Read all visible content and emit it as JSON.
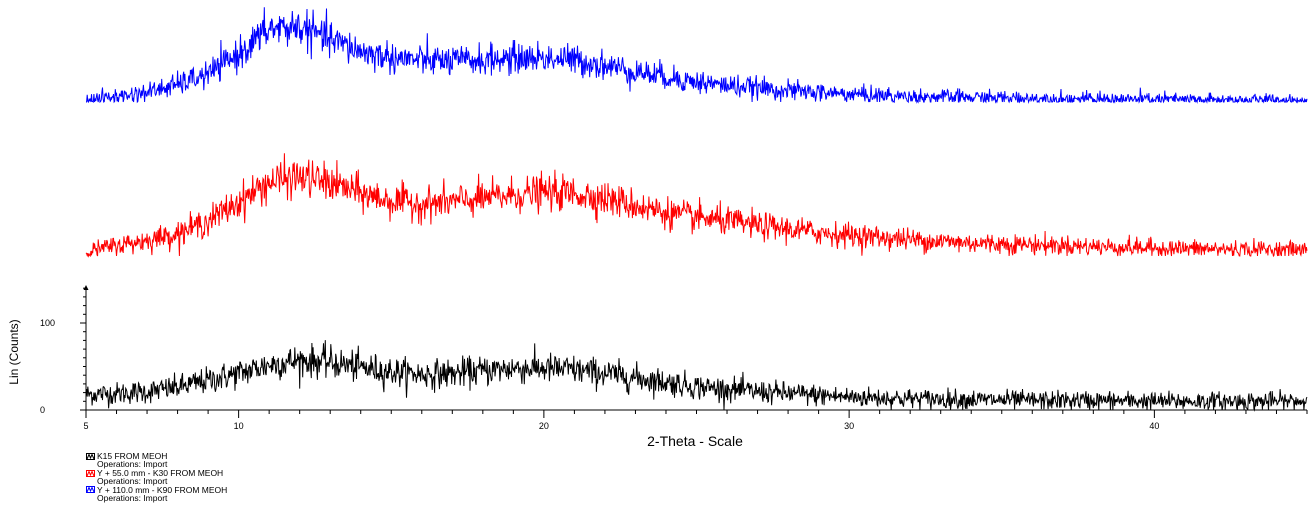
{
  "chart_data": {
    "type": "line",
    "title": "",
    "xlabel": "2-Theta - Scale",
    "ylabel": "Lin (Counts)",
    "xlim": [
      5,
      45
    ],
    "ylim": [
      0,
      145
    ],
    "x_ticks": [
      5,
      10,
      20,
      30,
      40
    ],
    "y_ticks": [
      0,
      100
    ],
    "grid": false,
    "legend_position": "bottom-left",
    "series": [
      {
        "name": "K15 FROM MEOH",
        "operations": "Operations: Import",
        "color": "#000000",
        "offset_mm": 0,
        "profile": {
          "x": [
            5,
            6,
            7,
            8,
            9,
            10,
            11,
            12,
            13,
            14,
            15,
            16,
            17,
            18,
            19,
            20,
            21,
            22,
            23,
            24,
            25,
            26,
            27,
            28,
            29,
            30,
            32,
            34,
            36,
            38,
            40,
            42,
            45
          ],
          "y": [
            18,
            19,
            21,
            26,
            34,
            42,
            52,
            57,
            55,
            49,
            44,
            41,
            42,
            45,
            48,
            48,
            46,
            42,
            37,
            32,
            27,
            24,
            21,
            19,
            17,
            15,
            13,
            12,
            11,
            11,
            10,
            10,
            10
          ]
        }
      },
      {
        "name": "Y + 55.0 mm - K30 FROM MEOH",
        "operations": "Operations: Import",
        "color": "#ff0000",
        "offset_mm": 55.0,
        "profile": {
          "x": [
            5,
            6,
            7,
            8,
            9,
            10,
            11,
            12,
            13,
            14,
            15,
            16,
            17,
            18,
            19,
            20,
            21,
            22,
            23,
            24,
            25,
            26,
            27,
            28,
            29,
            30,
            32,
            34,
            36,
            38,
            40,
            42,
            45
          ],
          "y": [
            5,
            12,
            18,
            26,
            40,
            62,
            85,
            91,
            84,
            72,
            63,
            60,
            62,
            66,
            70,
            73,
            72,
            66,
            58,
            50,
            44,
            40,
            35,
            31,
            27,
            24,
            19,
            15,
            13,
            11,
            9,
            8,
            7
          ]
        }
      },
      {
        "name": "Y + 110.0 mm - K90 FROM MEOH",
        "operations": "Operations: Import",
        "color": "#0000ff",
        "offset_mm": 110.0,
        "profile": {
          "x": [
            5,
            6,
            7,
            8,
            9,
            10,
            11,
            12,
            13,
            14,
            15,
            16,
            17,
            18,
            19,
            20,
            21,
            22,
            23,
            24,
            25,
            26,
            27,
            28,
            29,
            30,
            32,
            34,
            36,
            38,
            40,
            42,
            45
          ],
          "y": [
            3,
            6,
            11,
            20,
            32,
            55,
            84,
            86,
            72,
            58,
            51,
            48,
            47,
            48,
            50,
            51,
            48,
            42,
            35,
            29,
            23,
            19,
            16,
            13,
            11,
            9,
            6,
            5,
            4,
            3,
            3,
            2,
            2
          ]
        }
      }
    ]
  }
}
